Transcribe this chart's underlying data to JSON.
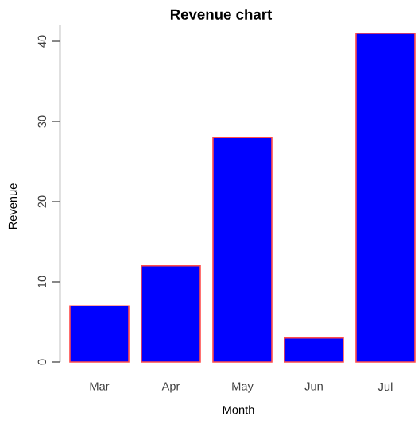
{
  "chart_data": {
    "type": "bar",
    "title": "Revenue chart",
    "xlabel": "Month",
    "ylabel": "Revenue",
    "categories": [
      "Mar",
      "Apr",
      "May",
      "Jun",
      "Jul"
    ],
    "values": [
      7,
      12,
      28,
      3,
      41
    ],
    "color": "#0000ff",
    "ylim": [
      0,
      42
    ],
    "yticks": [
      0,
      10,
      20,
      30,
      40
    ]
  }
}
